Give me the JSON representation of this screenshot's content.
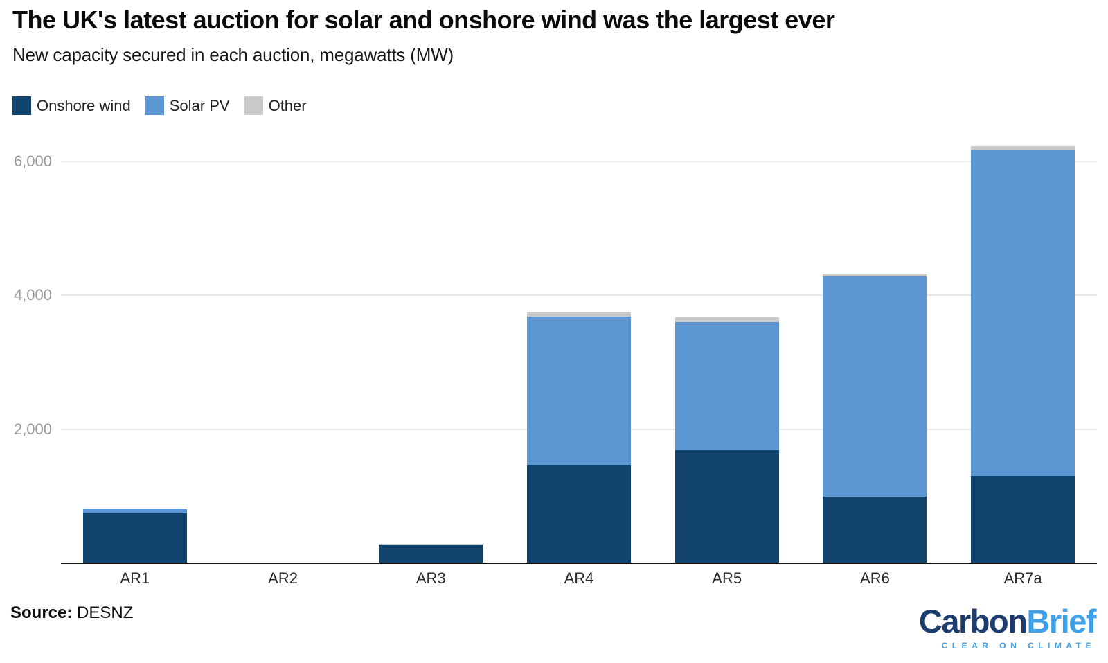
{
  "header": {
    "title": "The UK's latest auction for solar and onshore wind was the largest ever",
    "subtitle": "New capacity secured in each auction, megawatts (MW)"
  },
  "legend": {
    "items": [
      {
        "label": "Onshore wind",
        "color": "#12436D"
      },
      {
        "label": "Solar PV",
        "color": "#5C96D3"
      },
      {
        "label": "Other",
        "color": "#CACACA"
      }
    ]
  },
  "chart_data": {
    "type": "bar",
    "stacked": true,
    "title": "The UK's latest auction for solar and onshore wind was the largest ever",
    "subtitle": "New capacity secured in each auction, megawatts (MW)",
    "unit": "MW",
    "categories": [
      "AR1",
      "AR2",
      "AR3",
      "AR4",
      "AR5",
      "AR6",
      "AR7a"
    ],
    "series": [
      {
        "name": "Onshore wind",
        "color": "#12436D",
        "values": [
          749,
          0,
          275,
          1470,
          1690,
          990,
          1300
        ]
      },
      {
        "name": "Solar PV",
        "color": "#5C96D3",
        "values": [
          72,
          0,
          0,
          2210,
          1915,
          3290,
          4880
        ]
      },
      {
        "name": "Other",
        "color": "#CACACA",
        "values": [
          0,
          0,
          15,
          80,
          70,
          30,
          45
        ]
      }
    ],
    "totals": [
      821,
      0,
      290,
      3760,
      3675,
      4310,
      6225
    ],
    "xlabel": "",
    "ylabel": "megawatts (MW)",
    "yticks": [
      2000,
      4000,
      6000
    ],
    "ytick_labels": [
      "2,000",
      "4,000",
      "6,000"
    ],
    "ylim": [
      0,
      6450
    ],
    "grid": true,
    "legend_position": "top-left",
    "source": "DESNZ"
  },
  "footer": {
    "source_label": "Source:",
    "source_value": "DESNZ"
  },
  "logo": {
    "part1": "Carbon",
    "part2": "Brief",
    "tagline": "CLEAR ON CLIMATE"
  }
}
